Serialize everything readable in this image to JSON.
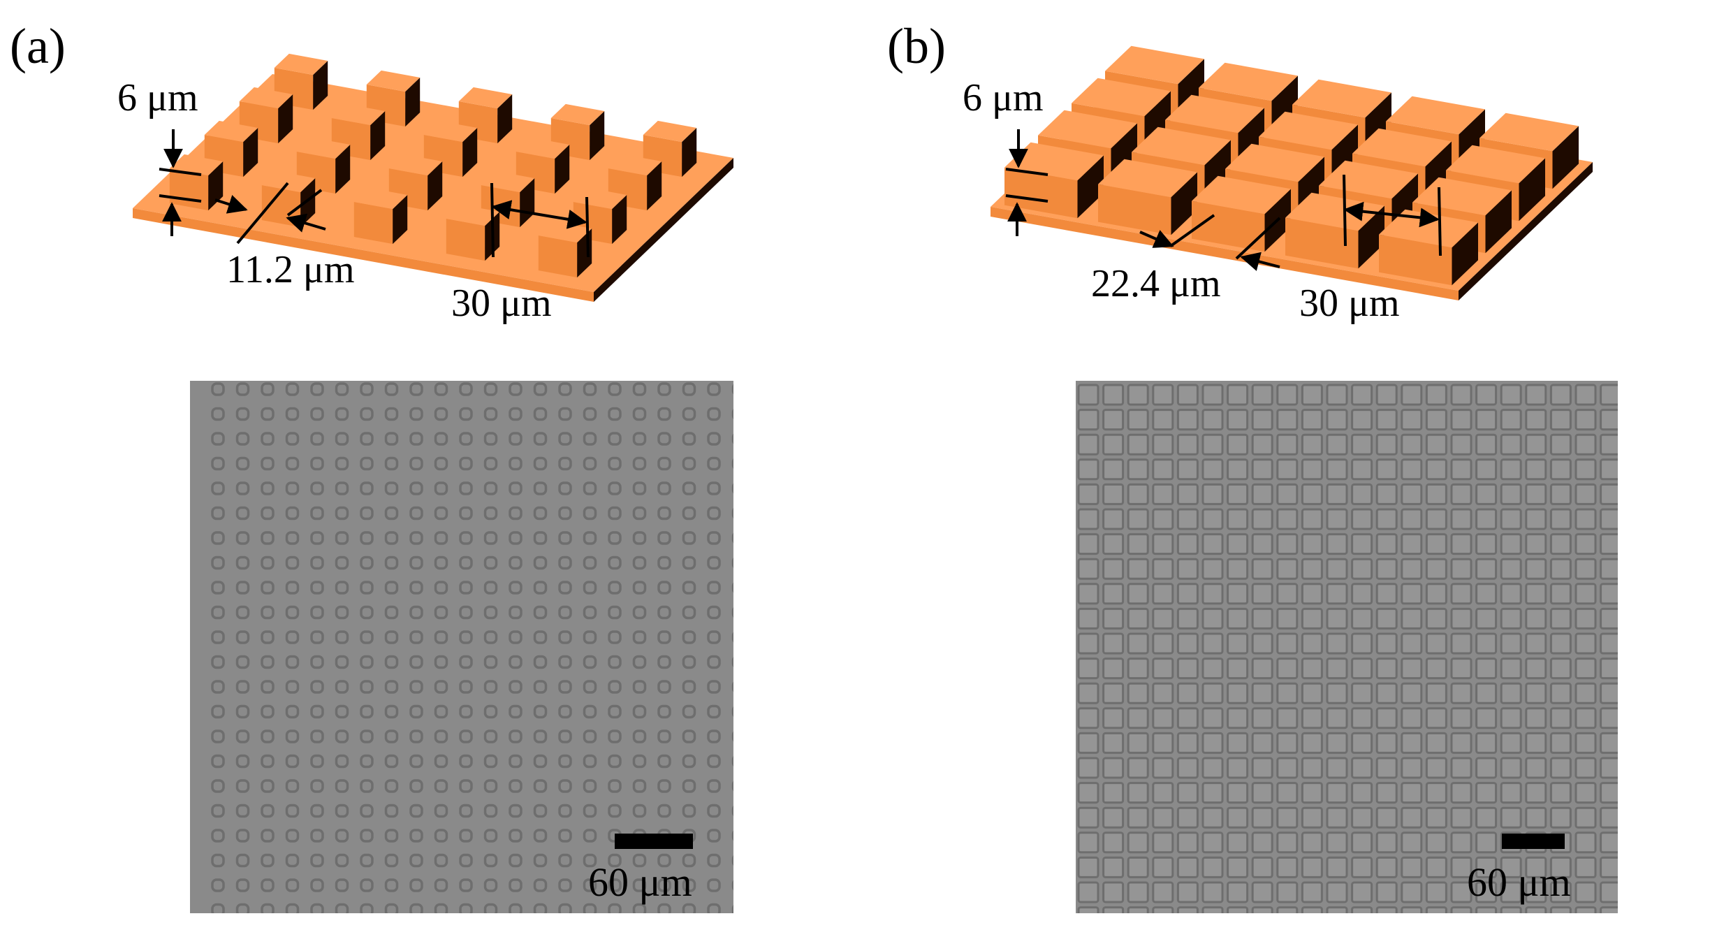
{
  "colors": {
    "top_face": "#FFA05A",
    "front_face": "#F28A3C",
    "side_face": "#D96F22",
    "dark_face": "#1E0A00",
    "micro_bg": "#8A8A8A",
    "micro_line": "#6E6E6E",
    "scale_bar": "#000000"
  },
  "panel_a": {
    "tag": "(a)",
    "height_label": "6 μm",
    "width_label": "11.2 μm",
    "period_label": "30 μm",
    "scale_label": "60 μm",
    "structure": "square-pillar-array"
  },
  "panel_b": {
    "tag": "(b)",
    "height_label": "6 μm",
    "width_label": "22.4 μm",
    "period_label": "30 μm",
    "scale_label": "60 μm",
    "structure": "square-grid-array"
  }
}
